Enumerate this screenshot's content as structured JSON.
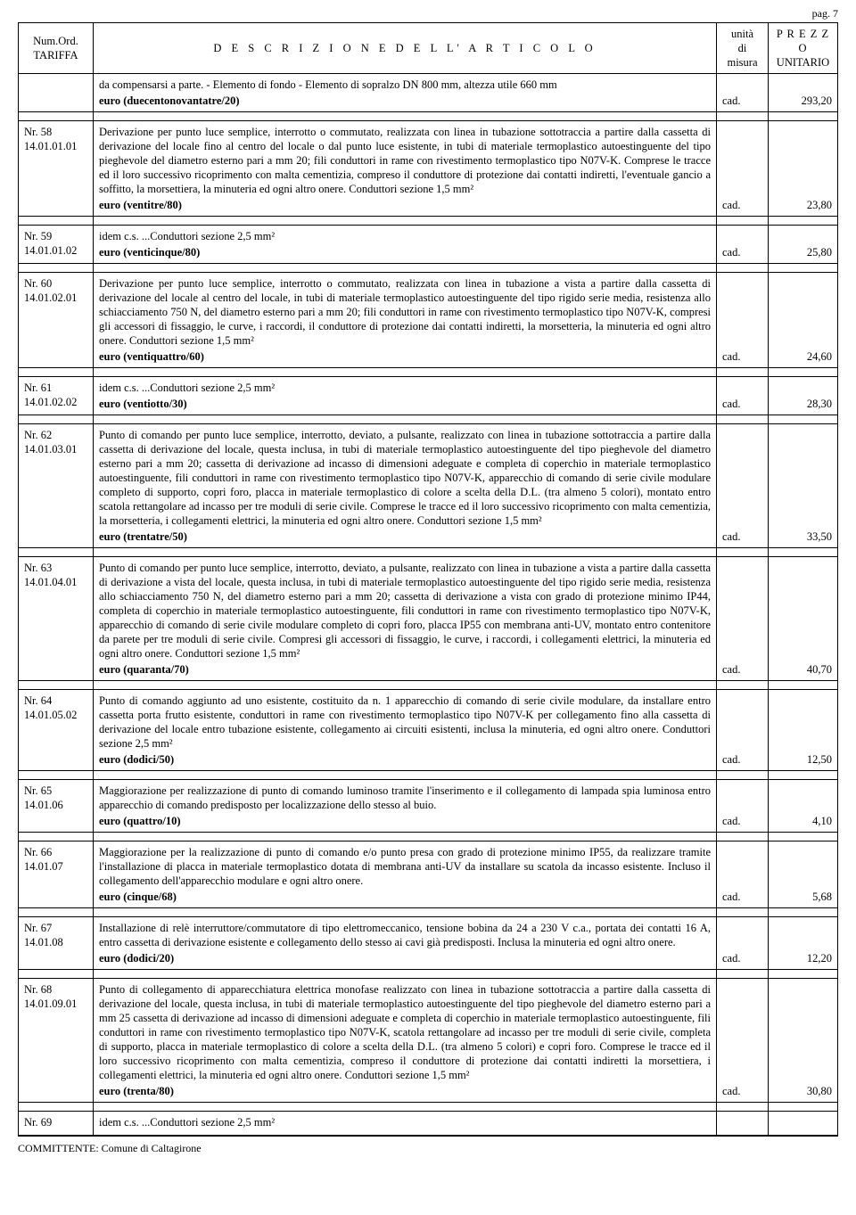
{
  "page_label": "pag. 7",
  "header": {
    "tariffa": "Num.Ord.\nTARIFFA",
    "descrizione": "D E S C R I Z I O N E   D E L L' A R T I C O L O",
    "unita1": "unità",
    "unita2": "di",
    "unita3": "misura",
    "prezzo1": "P R E Z Z O",
    "prezzo2": "UNITARIO"
  },
  "footer": "COMMITTENTE: Comune di Caltagirone",
  "rows": [
    {
      "tariffa": "",
      "desc": "da compensarsi a parte. - Elemento di fondo - Elemento di sopralzo DN 800 mm, altezza utile 660 mm",
      "euro": "euro (duecentonovantatre/20)",
      "unit": "cad.",
      "price": "293,20"
    },
    {
      "tariffa": "Nr. 58\n14.01.01.01",
      "desc": "Derivazione per punto luce semplice, interrotto o commutato, realizzata con linea in tubazione sottotraccia a partire dalla cassetta di derivazione del locale fino al centro del locale o dal punto luce esistente, in tubi di materiale termoplastico autoestinguente del tipo pieghevole del diametro esterno pari a mm 20; fili conduttori in rame con rivestimento termoplastico tipo N07V-K. Comprese le tracce ed il loro successivo ricoprimento con malta cementizia, compreso il conduttore di protezione dai contatti indiretti, l'eventuale gancio a soffitto, la morsettiera, la minuteria ed ogni altro onere. Conduttori sezione 1,5 mm²",
      "euro": "euro (ventitre/80)",
      "unit": "cad.",
      "price": "23,80"
    },
    {
      "tariffa": "Nr. 59\n14.01.01.02",
      "desc": "idem c.s. ...Conduttori sezione 2,5 mm²",
      "euro": "euro (venticinque/80)",
      "unit": "cad.",
      "price": "25,80"
    },
    {
      "tariffa": "Nr. 60\n14.01.02.01",
      "desc": "Derivazione per punto luce semplice, interrotto o commutato, realizzata con linea in tubazione a vista a partire dalla cassetta di derivazione del locale al centro del locale, in tubi di materiale termoplastico autoestinguente del tipo rigido serie media, resistenza allo schiacciamento 750 N, del diametro esterno pari a mm 20; fili conduttori in rame con rivestimento termoplastico tipo N07V-K, compresi gli accessori di fissaggio, le curve, i raccordi, il conduttore di protezione dai contatti indiretti, la morsetteria, la minuteria ed ogni altro onere. Conduttori sezione 1,5 mm²",
      "euro": "euro (ventiquattro/60)",
      "unit": "cad.",
      "price": "24,60"
    },
    {
      "tariffa": "Nr. 61\n14.01.02.02",
      "desc": "idem c.s. ...Conduttori sezione 2,5 mm²",
      "euro": "euro (ventiotto/30)",
      "unit": "cad.",
      "price": "28,30"
    },
    {
      "tariffa": "Nr. 62\n14.01.03.01",
      "desc": "Punto di comando per punto luce semplice, interrotto, deviato, a pulsante, realizzato con linea in tubazione sottotraccia a partire dalla cassetta di derivazione del locale, questa inclusa, in tubi di materiale termoplastico autoestinguente del tipo pieghevole del diametro esterno pari a mm 20; cassetta di derivazione ad incasso di dimensioni adeguate e completa di coperchio in materiale termoplastico autoestinguente, fili conduttori in rame con rivestimento termoplastico tipo N07V-K, apparecchio di comando di serie civile modulare completo di supporto, copri foro, placca in materiale termoplastico di colore a scelta della D.L. (tra almeno 5 colori), montato entro scatola rettangolare ad incasso per tre moduli di serie civile. Comprese le tracce ed il loro successivo ricoprimento con malta cementizia, la morsetteria, i collegamenti elettrici, la minuteria ed ogni altro onere. Conduttori sezione 1,5 mm²",
      "euro": "euro (trentatre/50)",
      "unit": "cad.",
      "price": "33,50"
    },
    {
      "tariffa": "Nr. 63\n14.01.04.01",
      "desc": "Punto di comando per punto luce semplice, interrotto, deviato, a pulsante, realizzato con linea in tubazione a vista a partire dalla cassetta di derivazione a vista del locale, questa inclusa, in tubi di materiale termoplastico autoestinguente del tipo rigido serie media, resistenza allo schiacciamento 750 N, del diametro esterno pari a mm 20; cassetta di derivazione a vista con grado di protezione minimo IP44, completa di coperchio in materiale termoplastico autoestinguente, fili conduttori in rame con rivestimento termoplastico tipo N07V-K, apparecchio di comando di serie civile modulare completo di copri foro, placca IP55 con membrana anti-UV, montato entro contenitore da parete per tre moduli di serie civile. Compresi gli accessori di fissaggio, le curve, i raccordi, i collegamenti elettrici, la minuteria ed ogni altro onere. Conduttori sezione 1,5 mm²",
      "euro": "euro (quaranta/70)",
      "unit": "cad.",
      "price": "40,70"
    },
    {
      "tariffa": "Nr. 64\n14.01.05.02",
      "desc": "Punto di comando aggiunto ad uno esistente, costituito da n. 1 apparecchio di comando di serie civile modulare, da installare entro cassetta porta frutto esistente, conduttori in rame con rivestimento termoplastico tipo N07V-K per collegamento fino alla cassetta di derivazione del locale entro tubazione esistente, collegamento ai circuiti esistenti, inclusa la minuteria, ed ogni altro onere. Conduttori sezione 2,5 mm²",
      "euro": "euro (dodici/50)",
      "unit": "cad.",
      "price": "12,50"
    },
    {
      "tariffa": "Nr. 65\n14.01.06",
      "desc": "Maggiorazione per realizzazione di punto di comando luminoso tramite l'inserimento e il collegamento di lampada spia luminosa entro apparecchio di comando predisposto per localizzazione dello stesso al buio.",
      "euro": "euro (quattro/10)",
      "unit": "cad.",
      "price": "4,10"
    },
    {
      "tariffa": "Nr. 66\n14.01.07",
      "desc": "Maggiorazione per la realizzazione di punto di comando e/o punto presa con grado di protezione minimo IP55, da realizzare tramite l'installazione di placca in materiale termoplastico dotata di membrana anti-UV da installare su scatola da incasso esistente. Incluso il collegamento dell'apparecchio modulare e ogni altro onere.",
      "euro": "euro (cinque/68)",
      "unit": "cad.",
      "price": "5,68"
    },
    {
      "tariffa": "Nr. 67\n14.01.08",
      "desc": "Installazione di relè interruttore/commutatore di tipo elettromeccanico, tensione bobina da 24 a 230 V c.a., portata dei contatti 16 A, entro cassetta di derivazione esistente e collegamento dello stesso ai cavi già predisposti. Inclusa la minuteria ed ogni altro onere.",
      "euro": "euro (dodici/20)",
      "unit": "cad.",
      "price": "12,20"
    },
    {
      "tariffa": "Nr. 68\n14.01.09.01",
      "desc": "Punto di collegamento di apparecchiatura elettrica monofase realizzato con linea in tubazione sottotraccia a partire dalla cassetta di derivazione del locale, questa inclusa, in tubi di materiale termoplastico autoestinguente del tipo pieghevole del diametro esterno pari a mm 25 cassetta di derivazione ad incasso di dimensioni adeguate e completa di coperchio in materiale termoplastico autoestinguente, fili conduttori in rame con rivestimento termoplastico tipo N07V-K, scatola rettangolare ad incasso per tre moduli di serie civile, completa di supporto, placca in materiale termoplastico di colore a scelta della D.L. (tra almeno 5 colori) e copri foro. Comprese le tracce ed il loro successivo ricoprimento con malta cementizia, compreso il conduttore di protezione dai contatti indiretti la morsettiera, i collegamenti elettrici, la minuteria ed ogni altro onere. Conduttori sezione 1,5 mm²",
      "euro": "euro (trenta/80)",
      "unit": "cad.",
      "price": "30,80"
    },
    {
      "tariffa": "Nr. 69",
      "desc": "idem c.s. ...Conduttori sezione 2,5 mm²",
      "euro": "",
      "unit": "",
      "price": ""
    }
  ]
}
